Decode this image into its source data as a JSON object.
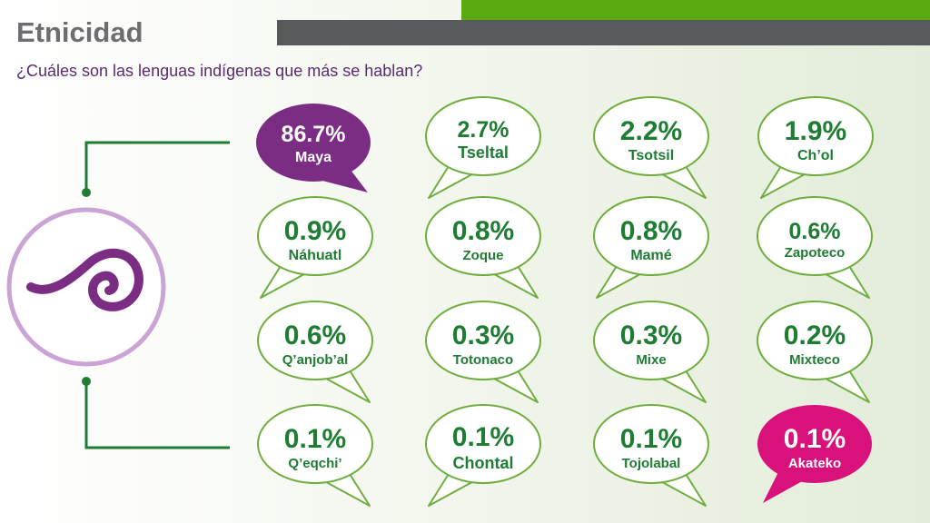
{
  "header": {
    "title": "Etnicidad",
    "subtitle": "¿Cuáles son las lenguas indígenas que más se hablan?"
  },
  "colors": {
    "accent_green": "#5aaa12",
    "header_gray": "#58595b",
    "bubble_outline": "#6fae3e",
    "text_green": "#1e7d32",
    "maya_fill": "#7b2d83",
    "akateko_fill": "#d8127a",
    "logo_purple": "#7b2d83",
    "logo_ring": "#c9a4d4"
  },
  "logo": {
    "icon": "swirl-icon"
  },
  "languages": [
    {
      "percent": "86.7%",
      "name": "Maya"
    },
    {
      "percent": "2.7%",
      "name": "Tseltal"
    },
    {
      "percent": "2.2%",
      "name": "Tsotsil"
    },
    {
      "percent": "1.9%",
      "name": "Ch’ol"
    },
    {
      "percent": "0.9%",
      "name": "Náhuatl"
    },
    {
      "percent": "0.8%",
      "name": "Zoque"
    },
    {
      "percent": "0.8%",
      "name": "Mamé"
    },
    {
      "percent": "0.6%",
      "name": "Zapoteco"
    },
    {
      "percent": "0.6%",
      "name": "Q’anjob’al"
    },
    {
      "percent": "0.3%",
      "name": "Totonaco"
    },
    {
      "percent": "0.3%",
      "name": "Mixe"
    },
    {
      "percent": "0.2%",
      "name": "Mixteco"
    },
    {
      "percent": "0.1%",
      "name": "Q’eqchi’"
    },
    {
      "percent": "0.1%",
      "name": "Chontal"
    },
    {
      "percent": "0.1%",
      "name": "Tojolabal"
    },
    {
      "percent": "0.1%",
      "name": "Akateko"
    }
  ]
}
